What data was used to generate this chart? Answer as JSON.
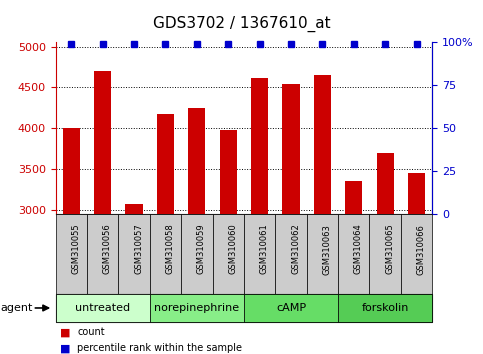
{
  "title": "GDS3702 / 1367610_at",
  "samples": [
    "GSM310055",
    "GSM310056",
    "GSM310057",
    "GSM310058",
    "GSM310059",
    "GSM310060",
    "GSM310061",
    "GSM310062",
    "GSM310063",
    "GSM310064",
    "GSM310065",
    "GSM310066"
  ],
  "counts": [
    4000,
    4700,
    3080,
    4170,
    4250,
    3980,
    4610,
    4540,
    4650,
    3360,
    3700,
    3450
  ],
  "bar_color": "#cc0000",
  "dot_color": "#0000cc",
  "ylim": [
    2950,
    5050
  ],
  "y2lim": [
    0,
    100
  ],
  "yticks": [
    3000,
    3500,
    4000,
    4500,
    5000
  ],
  "y2ticks": [
    0,
    25,
    50,
    75,
    100
  ],
  "y2ticklabels": [
    "0",
    "25",
    "50",
    "75",
    "100%"
  ],
  "groups": [
    {
      "label": "untreated",
      "start": 0,
      "end": 3,
      "color": "#ccffcc"
    },
    {
      "label": "norepinephrine",
      "start": 3,
      "end": 6,
      "color": "#88ee88"
    },
    {
      "label": "cAMP",
      "start": 6,
      "end": 9,
      "color": "#66dd66"
    },
    {
      "label": "forskolin",
      "start": 9,
      "end": 12,
      "color": "#55cc55"
    }
  ],
  "agent_label": "agent",
  "legend_count_label": "count",
  "legend_percentile_label": "percentile rank within the sample",
  "bar_width": 0.55,
  "sample_bg_color": "#cccccc",
  "title_fontsize": 11,
  "axis_tick_fontsize": 8,
  "sample_fontsize": 6,
  "group_fontsize": 8,
  "legend_fontsize": 7
}
